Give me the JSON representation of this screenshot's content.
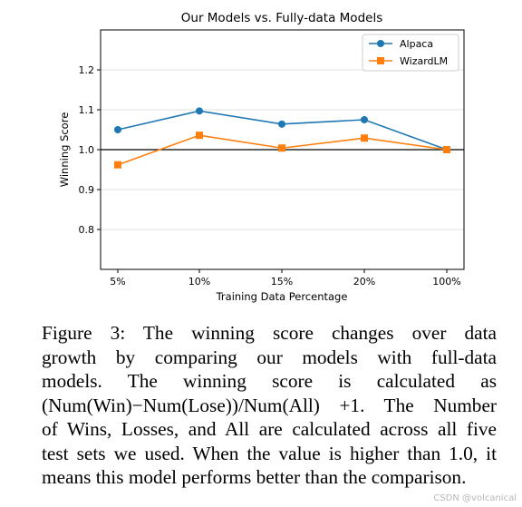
{
  "chart_data": {
    "type": "line",
    "title": "Our Models vs. Fully-data Models",
    "xlabel": "Training Data Percentage",
    "ylabel": "Winning Score",
    "categories": [
      "5%",
      "10%",
      "15%",
      "20%",
      "100%"
    ],
    "ylim": [
      0.7,
      1.3
    ],
    "yticks": [
      0.8,
      0.9,
      1.0,
      1.1,
      1.2
    ],
    "ytick_labels": [
      "0.8",
      "0.9",
      "1.0",
      "1.1",
      "1.2"
    ],
    "reference_line": 1.0,
    "grid": "horizontal",
    "legend_position": "top-right",
    "series": [
      {
        "name": "Alpaca",
        "values": [
          1.05,
          1.097,
          1.064,
          1.075,
          1.0
        ],
        "color": "#1f77b4",
        "marker": "circle"
      },
      {
        "name": "WizardLM",
        "values": [
          0.962,
          1.036,
          1.004,
          1.029,
          1.0
        ],
        "color": "#ff7f0e",
        "marker": "square"
      }
    ]
  },
  "caption": {
    "lines": [
      "Figure 3:  The winning score changes over data",
      "growth by comparing our models with full-data",
      "models.   The winning score is calculated as",
      "(Num(Win)−Num(Lose))/Num(All) +1. The Number",
      "of Wins, Losses, and All are calculated across all five",
      "test sets we used. When the value is higher than 1.0, it",
      "means this model performs better than the comparison."
    ]
  },
  "watermark": "CSDN @volcanical"
}
